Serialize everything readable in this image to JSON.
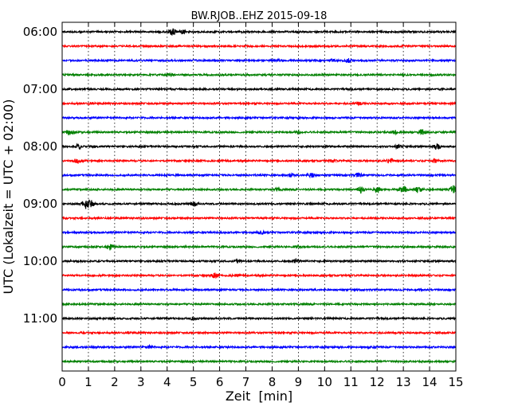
{
  "chart_data": {
    "type": "line",
    "title": "BW.RJOB..EHZ 2015-09-18",
    "xlabel": "Zeit  [min]",
    "ylabel": "UTC (Lokalzeit = UTC + 02:00)",
    "xlim": [
      0,
      15
    ],
    "x_ticks": [
      "0",
      "1",
      "2",
      "3",
      "4",
      "5",
      "6",
      "7",
      "8",
      "9",
      "10",
      "11",
      "12",
      "13",
      "14",
      "15"
    ],
    "y_tick_labels": [
      "06:00",
      "07:00",
      "08:00",
      "09:00",
      "10:00",
      "11:00"
    ],
    "traces_per_hour": 4,
    "trace_colors": [
      "#000000",
      "#ff0000",
      "#0000ff",
      "#008000"
    ],
    "grid": "vertical dotted",
    "traces": [
      {
        "start": "06:00",
        "events": [
          [
            4.2,
            5
          ],
          [
            4.6,
            2
          ]
        ]
      },
      {
        "start": "06:15",
        "events": []
      },
      {
        "start": "06:30",
        "events": [
          [
            10.9,
            2.5
          ],
          [
            10.3,
            1.5
          ],
          [
            8.2,
            1.2
          ]
        ]
      },
      {
        "start": "06:45",
        "events": [
          [
            4.1,
            2
          ]
        ]
      },
      {
        "start": "07:00",
        "events": []
      },
      {
        "start": "07:15",
        "events": [
          [
            1.1,
            1.5
          ],
          [
            11.3,
            1.5
          ]
        ]
      },
      {
        "start": "07:30",
        "events": []
      },
      {
        "start": "07:45",
        "events": [
          [
            0.3,
            4
          ],
          [
            13.7,
            3.5
          ],
          [
            12.7,
            2.5
          ],
          [
            9.0,
            1.5
          ]
        ]
      },
      {
        "start": "08:00",
        "events": [
          [
            0.6,
            3
          ],
          [
            14.3,
            4
          ],
          [
            12.8,
            2.5
          ],
          [
            1.2,
            1.5
          ]
        ]
      },
      {
        "start": "08:15",
        "events": [
          [
            0.6,
            3.5
          ],
          [
            12.5,
            3
          ],
          [
            14.2,
            2
          ],
          [
            10.3,
            1.5
          ]
        ]
      },
      {
        "start": "08:30",
        "events": [
          [
            9.5,
            3.5
          ],
          [
            11.3,
            2.5
          ],
          [
            8.7,
            1.5
          ]
        ]
      },
      {
        "start": "08:45",
        "events": [
          [
            11.4,
            5
          ],
          [
            12.0,
            4
          ],
          [
            13.0,
            5
          ],
          [
            13.6,
            5
          ],
          [
            14.9,
            5
          ],
          [
            8.2,
            2
          ]
        ]
      },
      {
        "start": "09:00",
        "events": [
          [
            0.9,
            6
          ],
          [
            1.1,
            4
          ],
          [
            5.0,
            3
          ]
        ]
      },
      {
        "start": "09:15",
        "events": []
      },
      {
        "start": "09:30",
        "events": [
          [
            7.6,
            2
          ]
        ]
      },
      {
        "start": "09:45",
        "events": [
          [
            1.8,
            4
          ],
          [
            9.0,
            2
          ]
        ]
      },
      {
        "start": "10:00",
        "events": [
          [
            8.9,
            3
          ],
          [
            6.7,
            1.5
          ]
        ]
      },
      {
        "start": "10:15",
        "events": [
          [
            5.8,
            3
          ],
          [
            6.6,
            1.5
          ]
        ]
      },
      {
        "start": "10:30",
        "events": []
      },
      {
        "start": "10:45",
        "events": []
      },
      {
        "start": "11:00",
        "events": [
          [
            5.0,
            1.5
          ]
        ]
      },
      {
        "start": "11:15",
        "events": [
          [
            2.5,
            1.5
          ]
        ]
      },
      {
        "start": "11:30",
        "events": [
          [
            3.3,
            2
          ],
          [
            11.8,
            1.5
          ]
        ]
      },
      {
        "start": "11:45",
        "events": []
      }
    ]
  }
}
